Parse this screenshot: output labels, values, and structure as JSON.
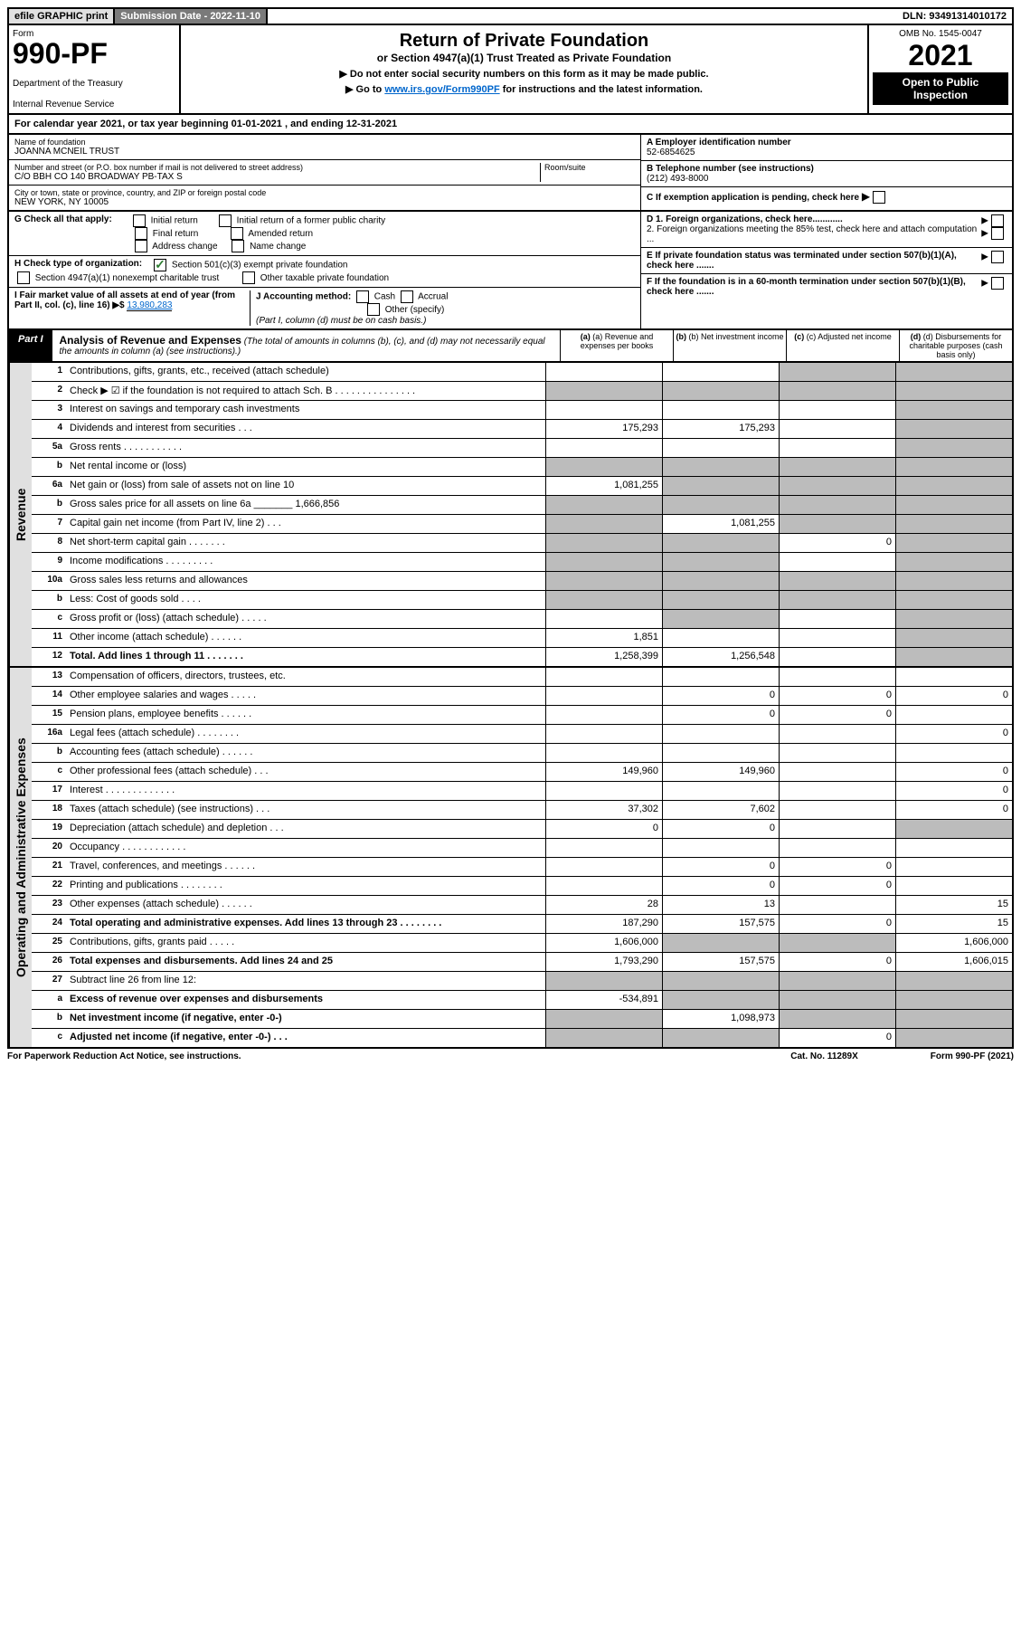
{
  "topbar": {
    "efile": "efile GRAPHIC print",
    "submission": "Submission Date - 2022-11-10",
    "dln": "DLN: 93491314010172"
  },
  "header": {
    "form_label": "Form",
    "form_number": "990-PF",
    "dept1": "Department of the Treasury",
    "dept2": "Internal Revenue Service",
    "title": "Return of Private Foundation",
    "subtitle": "or Section 4947(a)(1) Trust Treated as Private Foundation",
    "note1": "▶ Do not enter social security numbers on this form as it may be made public.",
    "note2_prefix": "▶ Go to ",
    "note2_link": "www.irs.gov/Form990PF",
    "note2_suffix": " for instructions and the latest information.",
    "omb": "OMB No. 1545-0047",
    "year": "2021",
    "open": "Open to Public Inspection"
  },
  "calyear": "For calendar year 2021, or tax year beginning 01-01-2021             , and ending 12-31-2021",
  "info": {
    "name_label": "Name of foundation",
    "name": "JOANNA MCNEIL TRUST",
    "addr_label": "Number and street (or P.O. box number if mail is not delivered to street address)",
    "addr": "C/O BBH CO 140 BROADWAY PB-TAX S",
    "room_label": "Room/suite",
    "city_label": "City or town, state or province, country, and ZIP or foreign postal code",
    "city": "NEW YORK, NY  10005",
    "ein_label": "A Employer identification number",
    "ein": "52-6854625",
    "phone_label": "B Telephone number (see instructions)",
    "phone": "(212) 493-8000",
    "c_label": "C If exemption application is pending, check here",
    "g_label": "G Check all that apply:",
    "g_opts": [
      "Initial return",
      "Initial return of a former public charity",
      "Final return",
      "Amended return",
      "Address change",
      "Name change"
    ],
    "d1": "D 1. Foreign organizations, check here............",
    "d2": "2. Foreign organizations meeting the 85% test, check here and attach computation ...",
    "h_label": "H Check type of organization:",
    "h_opt1": "Section 501(c)(3) exempt private foundation",
    "h_opt2": "Section 4947(a)(1) nonexempt charitable trust",
    "h_opt3": "Other taxable private foundation",
    "e_label": "E If private foundation status was terminated under section 507(b)(1)(A), check here .......",
    "i_label": "I Fair market value of all assets at end of year (from Part II, col. (c), line 16) ▶$",
    "i_value": "13,980,283",
    "j_label": "J Accounting method:",
    "j_cash": "Cash",
    "j_accrual": "Accrual",
    "j_other": "Other (specify)",
    "j_note": "(Part I, column (d) must be on cash basis.)",
    "f_label": "F If the foundation is in a 60-month termination under section 507(b)(1)(B), check here ......."
  },
  "part1": {
    "label": "Part I",
    "title": "Analysis of Revenue and Expenses",
    "desc": "(The total of amounts in columns (b), (c), and (d) may not necessarily equal the amounts in column (a) (see instructions).)",
    "col_a": "(a) Revenue and expenses per books",
    "col_b": "(b) Net investment income",
    "col_c": "(c) Adjusted net income",
    "col_d": "(d) Disbursements for charitable purposes (cash basis only)"
  },
  "sections": {
    "revenue": "Revenue",
    "expenses": "Operating and Administrative Expenses"
  },
  "rows": [
    {
      "n": "1",
      "label": "Contributions, gifts, grants, etc., received (attach schedule)",
      "a": "",
      "b": "",
      "c": "",
      "d": "",
      "gray_c": true,
      "gray_d": true
    },
    {
      "n": "2",
      "label": "Check ▶ ☑ if the foundation is not required to attach Sch. B      .  .  .  .  .  .  .  .  .  .  .  .  .  .  .",
      "a": "g",
      "b": "g",
      "c": "g",
      "d": "g"
    },
    {
      "n": "3",
      "label": "Interest on savings and temporary cash investments",
      "a": "",
      "b": "",
      "c": "",
      "d": "",
      "gray_d": true
    },
    {
      "n": "4",
      "label": "Dividends and interest from securities    .  .  .",
      "a": "175,293",
      "b": "175,293",
      "c": "",
      "d": "",
      "gray_d": true
    },
    {
      "n": "5a",
      "label": "Gross rents      .  .  .  .  .  .  .  .  .  .  .",
      "a": "",
      "b": "",
      "c": "",
      "d": "",
      "gray_d": true
    },
    {
      "n": "b",
      "label": "Net rental income or (loss)",
      "a": "g",
      "b": "g",
      "c": "g",
      "d": "g",
      "boxed": true
    },
    {
      "n": "6a",
      "label": "Net gain or (loss) from sale of assets not on line 10",
      "a": "1,081,255",
      "b": "g",
      "c": "g",
      "d": "g",
      "gray_b": true,
      "gray_c": true,
      "gray_d": true
    },
    {
      "n": "b",
      "label": "Gross sales price for all assets on line 6a _______ 1,666,856",
      "a": "g",
      "b": "g",
      "c": "g",
      "d": "g"
    },
    {
      "n": "7",
      "label": "Capital gain net income (from Part IV, line 2)    .  .  .",
      "a": "g",
      "b": "1,081,255",
      "c": "g",
      "d": "g",
      "gray_a": true,
      "gray_c": true,
      "gray_d": true
    },
    {
      "n": "8",
      "label": "Net short-term capital gain   .  .  .  .  .  .  .",
      "a": "g",
      "b": "g",
      "c": "0",
      "d": "g",
      "gray_a": true,
      "gray_b": true,
      "gray_d": true
    },
    {
      "n": "9",
      "label": "Income modifications  .  .  .  .  .  .  .  .  .",
      "a": "g",
      "b": "g",
      "c": "",
      "d": "g",
      "gray_a": true,
      "gray_b": true,
      "gray_d": true
    },
    {
      "n": "10a",
      "label": "Gross sales less returns and allowances",
      "a": "g",
      "b": "g",
      "c": "g",
      "d": "g",
      "boxed": true
    },
    {
      "n": "b",
      "label": "Less: Cost of goods sold    .  .  .  .",
      "a": "g",
      "b": "g",
      "c": "g",
      "d": "g",
      "boxed": true
    },
    {
      "n": "c",
      "label": "Gross profit or (loss) (attach schedule)      .  .  .  .  .",
      "a": "",
      "b": "g",
      "c": "",
      "d": "g",
      "gray_b": true,
      "gray_d": true
    },
    {
      "n": "11",
      "label": "Other income (attach schedule)    .  .  .  .  .  .",
      "a": "1,851",
      "b": "",
      "c": "",
      "d": "",
      "gray_d": true
    },
    {
      "n": "12",
      "label": "Total. Add lines 1 through 11   .  .  .  .  .  .  .",
      "a": "1,258,399",
      "b": "1,256,548",
      "c": "",
      "d": "",
      "bold": true,
      "gray_d": true
    }
  ],
  "exp_rows": [
    {
      "n": "13",
      "label": "Compensation of officers, directors, trustees, etc.",
      "a": "",
      "b": "",
      "c": "",
      "d": ""
    },
    {
      "n": "14",
      "label": "Other employee salaries and wages    .  .  .  .  .",
      "a": "",
      "b": "0",
      "c": "0",
      "d": "0"
    },
    {
      "n": "15",
      "label": "Pension plans, employee benefits   .  .  .  .  .  .",
      "a": "",
      "b": "0",
      "c": "0",
      "d": ""
    },
    {
      "n": "16a",
      "label": "Legal fees (attach schedule)  .  .  .  .  .  .  .  .",
      "a": "",
      "b": "",
      "c": "",
      "d": "0"
    },
    {
      "n": "b",
      "label": "Accounting fees (attach schedule)  .  .  .  .  .  .",
      "a": "",
      "b": "",
      "c": "",
      "d": ""
    },
    {
      "n": "c",
      "label": "Other professional fees (attach schedule)    .  .  .",
      "a": "149,960",
      "b": "149,960",
      "c": "",
      "d": "0"
    },
    {
      "n": "17",
      "label": "Interest  .  .  .  .  .  .  .  .  .  .  .  .  .",
      "a": "",
      "b": "",
      "c": "",
      "d": "0"
    },
    {
      "n": "18",
      "label": "Taxes (attach schedule) (see instructions)      .  .  .",
      "a": "37,302",
      "b": "7,602",
      "c": "",
      "d": "0"
    },
    {
      "n": "19",
      "label": "Depreciation (attach schedule) and depletion    .  .  .",
      "a": "0",
      "b": "0",
      "c": "",
      "d": "",
      "gray_d": true
    },
    {
      "n": "20",
      "label": "Occupancy  .  .  .  .  .  .  .  .  .  .  .  .",
      "a": "",
      "b": "",
      "c": "",
      "d": ""
    },
    {
      "n": "21",
      "label": "Travel, conferences, and meetings  .  .  .  .  .  .",
      "a": "",
      "b": "0",
      "c": "0",
      "d": ""
    },
    {
      "n": "22",
      "label": "Printing and publications  .  .  .  .  .  .  .  .",
      "a": "",
      "b": "0",
      "c": "0",
      "d": ""
    },
    {
      "n": "23",
      "label": "Other expenses (attach schedule)  .  .  .  .  .  .",
      "a": "28",
      "b": "13",
      "c": "",
      "d": "15"
    },
    {
      "n": "24",
      "label": "Total operating and administrative expenses. Add lines 13 through 23   .  .  .  .  .  .  .  .",
      "a": "187,290",
      "b": "157,575",
      "c": "0",
      "d": "15",
      "bold": true
    },
    {
      "n": "25",
      "label": "Contributions, gifts, grants paid     .  .  .  .  .",
      "a": "1,606,000",
      "b": "g",
      "c": "g",
      "d": "1,606,000",
      "gray_b": true,
      "gray_c": true
    },
    {
      "n": "26",
      "label": "Total expenses and disbursements. Add lines 24 and 25",
      "a": "1,793,290",
      "b": "157,575",
      "c": "0",
      "d": "1,606,015",
      "bold": true
    },
    {
      "n": "27",
      "label": "Subtract line 26 from line 12:",
      "a": "g",
      "b": "g",
      "c": "g",
      "d": "g"
    },
    {
      "n": "a",
      "label": "Excess of revenue over expenses and disbursements",
      "a": "-534,891",
      "b": "g",
      "c": "g",
      "d": "g",
      "bold": true,
      "gray_b": true,
      "gray_c": true,
      "gray_d": true
    },
    {
      "n": "b",
      "label": "Net investment income (if negative, enter -0-)",
      "a": "g",
      "b": "1,098,973",
      "c": "g",
      "d": "g",
      "bold": true,
      "gray_a": true,
      "gray_c": true,
      "gray_d": true
    },
    {
      "n": "c",
      "label": "Adjusted net income (if negative, enter -0-)    .  .  .",
      "a": "g",
      "b": "g",
      "c": "0",
      "d": "g",
      "bold": true,
      "gray_a": true,
      "gray_b": true,
      "gray_d": true
    }
  ],
  "footer": {
    "left": "For Paperwork Reduction Act Notice, see instructions.",
    "center": "Cat. No. 11289X",
    "right": "Form 990-PF (2021)"
  }
}
